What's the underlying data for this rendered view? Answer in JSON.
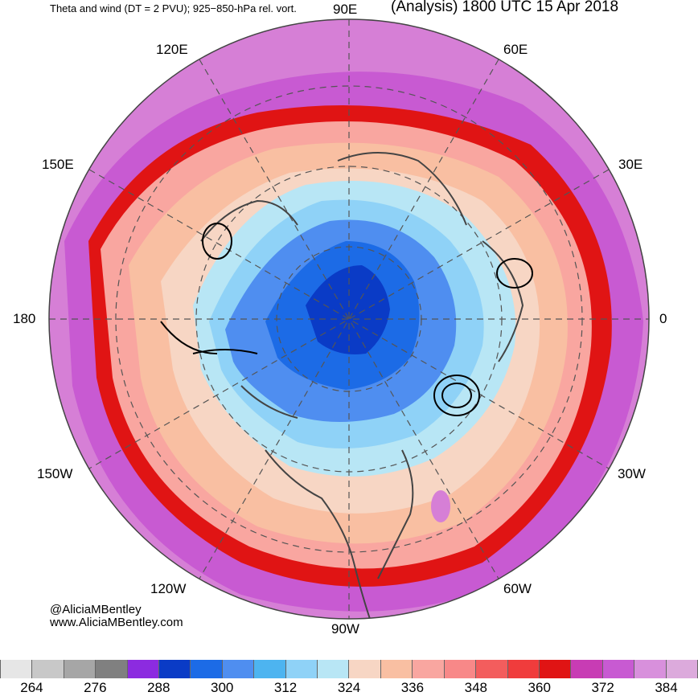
{
  "header": {
    "left_title": "Theta and wind (DT = 2 PVU); 925−850-hPa rel. vort.",
    "right_title": "(Analysis) 1800 UTC 15 Apr 2018"
  },
  "longitude_labels": {
    "e90": "90E",
    "e120": "120E",
    "e60": "60E",
    "e150": "150E",
    "e30": "30E",
    "w180": "180",
    "e0": "0",
    "w150": "150W",
    "w30": "30W",
    "w120": "120W",
    "w60": "60W",
    "w90": "90W"
  },
  "credits": {
    "handle": "@AliciaMBentley",
    "website": "www.AliciaMBentley.com"
  },
  "colorbar": {
    "colors": [
      "#e6e6e6",
      "#c8c8c8",
      "#a6a6a6",
      "#808080",
      "#8c2be0",
      "#0a3bc6",
      "#1c6be6",
      "#4f8ef0",
      "#4db4f0",
      "#8fd2f7",
      "#b8e6f5",
      "#f7d6c4",
      "#f9bfa2",
      "#f9a6a0",
      "#f88888",
      "#f35d5d",
      "#f03c3c",
      "#e01414",
      "#c83cb4",
      "#c85ad2",
      "#d890dc",
      "#dcaadc"
    ],
    "ticks": [
      "264",
      "276",
      "288",
      "300",
      "312",
      "324",
      "336",
      "348",
      "360",
      "372",
      "384"
    ]
  }
}
